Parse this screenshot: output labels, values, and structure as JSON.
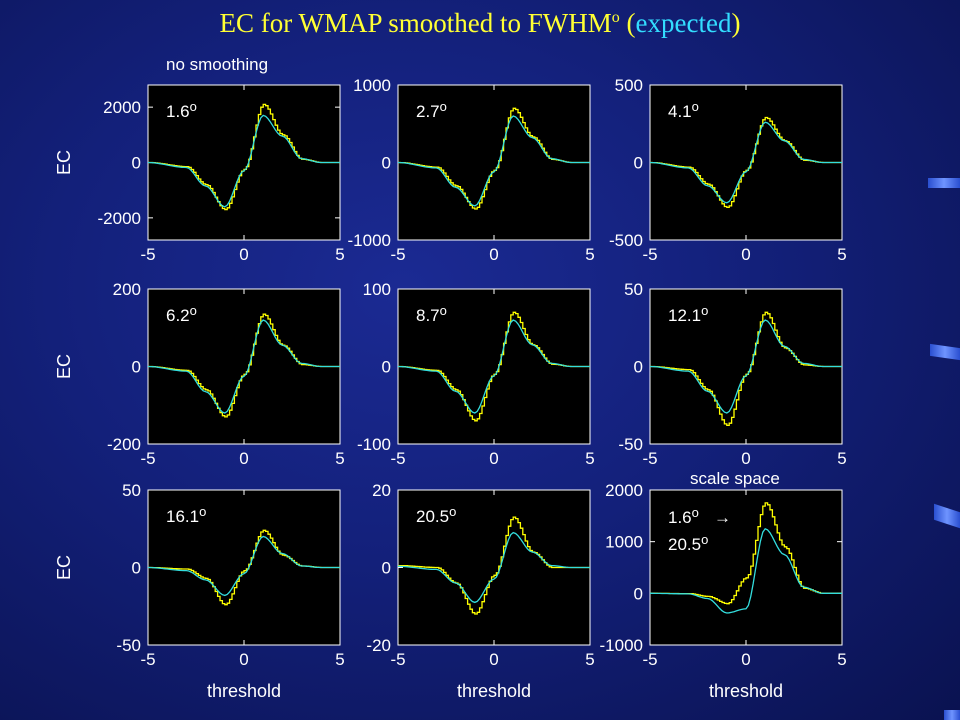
{
  "slide": {
    "title_prefix": "EC for WMAP smoothed to FWHM",
    "title_sup": "o",
    "title_open": " (",
    "title_expected": "expected",
    "title_close": ")",
    "note_no_smoothing": "no smoothing",
    "note_scale_space": "scale space"
  },
  "colors": {
    "observed_curve": "#ffff00",
    "expected_curve": "#33dddd",
    "title": "#ffff33",
    "expected_title": "#33ddff",
    "background": "#13207a",
    "plot_background": "#000000"
  },
  "chart_data": [
    {
      "type": "line",
      "panel": "1.6",
      "label": "1.6",
      "label_sup": "o",
      "xlabel": "",
      "ylabel": "EC",
      "xlim": [
        -5,
        5
      ],
      "ylim": [
        -2800,
        2800
      ],
      "xticks": [
        "-5",
        "0",
        "5"
      ],
      "yticks": [
        {
          "v": 2000,
          "t": "2000"
        },
        {
          "v": 0,
          "t": "0"
        },
        {
          "v": -2000,
          "t": "-2000"
        }
      ],
      "series": [
        {
          "color": "yellow",
          "x": [
            -5,
            -3,
            -2,
            -1,
            0,
            1,
            2,
            3,
            4,
            5
          ],
          "y": [
            0,
            -150,
            -800,
            -1700,
            -250,
            2100,
            1000,
            120,
            0,
            0
          ]
        },
        {
          "color": "cyan",
          "x": [
            -5,
            -3,
            -2,
            -1,
            0,
            1,
            2,
            3,
            4,
            5
          ],
          "y": [
            0,
            -180,
            -850,
            -1600,
            -300,
            1700,
            950,
            140,
            0,
            0
          ]
        }
      ]
    },
    {
      "type": "line",
      "panel": "2.7",
      "label": "2.7",
      "label_sup": "o",
      "xlabel": "",
      "ylabel": "",
      "xlim": [
        -5,
        5
      ],
      "ylim": [
        -1000,
        1000
      ],
      "xticks": [
        "-5",
        "0",
        "5"
      ],
      "yticks": [
        {
          "v": 1000,
          "t": "1000"
        },
        {
          "v": 0,
          "t": "0"
        },
        {
          "v": -1000,
          "t": "-1000"
        }
      ],
      "series": [
        {
          "color": "yellow",
          "x": [
            -5,
            -3,
            -2,
            -1,
            0,
            1,
            2,
            3,
            4,
            5
          ],
          "y": [
            0,
            -60,
            -300,
            -600,
            -100,
            700,
            330,
            40,
            0,
            0
          ]
        },
        {
          "color": "cyan",
          "x": [
            -5,
            -3,
            -2,
            -1,
            0,
            1,
            2,
            3,
            4,
            5
          ],
          "y": [
            0,
            -70,
            -320,
            -560,
            -120,
            600,
            320,
            50,
            0,
            0
          ]
        }
      ]
    },
    {
      "type": "line",
      "panel": "4.1",
      "label": "4.1",
      "label_sup": "o",
      "xlabel": "",
      "ylabel": "",
      "xlim": [
        -5,
        5
      ],
      "ylim": [
        -500,
        500
      ],
      "xticks": [
        "-5",
        "0",
        "5"
      ],
      "yticks": [
        {
          "v": 500,
          "t": "500"
        },
        {
          "v": 0,
          "t": "0"
        },
        {
          "v": -500,
          "t": "-500"
        }
      ],
      "series": [
        {
          "color": "yellow",
          "x": [
            -5,
            -3,
            -2,
            -1,
            0,
            1,
            2,
            3,
            4,
            5
          ],
          "y": [
            0,
            -30,
            -140,
            -290,
            -50,
            290,
            140,
            15,
            0,
            0
          ]
        },
        {
          "color": "cyan",
          "x": [
            -5,
            -3,
            -2,
            -1,
            0,
            1,
            2,
            3,
            4,
            5
          ],
          "y": [
            0,
            -35,
            -150,
            -260,
            -60,
            260,
            140,
            20,
            0,
            0
          ]
        }
      ]
    },
    {
      "type": "line",
      "panel": "6.2",
      "label": "6.2",
      "label_sup": "o",
      "xlabel": "",
      "ylabel": "EC",
      "xlim": [
        -5,
        5
      ],
      "ylim": [
        -200,
        200
      ],
      "xticks": [
        "-5",
        "0",
        "5"
      ],
      "yticks": [
        {
          "v": 200,
          "t": "200"
        },
        {
          "v": 0,
          "t": "0"
        },
        {
          "v": -200,
          "t": "-200"
        }
      ],
      "series": [
        {
          "color": "yellow",
          "x": [
            -5,
            -3,
            -2,
            -1,
            0,
            1,
            2,
            3,
            4,
            5
          ],
          "y": [
            0,
            -10,
            -60,
            -130,
            -20,
            135,
            55,
            5,
            0,
            0
          ]
        },
        {
          "color": "cyan",
          "x": [
            -5,
            -3,
            -2,
            -1,
            0,
            1,
            2,
            3,
            4,
            5
          ],
          "y": [
            0,
            -12,
            -65,
            -120,
            -25,
            120,
            55,
            8,
            0,
            0
          ]
        }
      ]
    },
    {
      "type": "line",
      "panel": "8.7",
      "label": "8.7",
      "label_sup": "o",
      "xlabel": "",
      "ylabel": "",
      "xlim": [
        -5,
        5
      ],
      "ylim": [
        -100,
        100
      ],
      "xticks": [
        "-5",
        "0",
        "5"
      ],
      "yticks": [
        {
          "v": 100,
          "t": "100"
        },
        {
          "v": 0,
          "t": "0"
        },
        {
          "v": -100,
          "t": "-100"
        }
      ],
      "series": [
        {
          "color": "yellow",
          "x": [
            -5,
            -3,
            -2,
            -1,
            0,
            1,
            2,
            3,
            4,
            5
          ],
          "y": [
            0,
            -5,
            -30,
            -70,
            -10,
            70,
            28,
            3,
            0,
            0
          ]
        },
        {
          "color": "cyan",
          "x": [
            -5,
            -3,
            -2,
            -1,
            0,
            1,
            2,
            3,
            4,
            5
          ],
          "y": [
            0,
            -6,
            -32,
            -60,
            -12,
            60,
            28,
            4,
            0,
            0
          ]
        }
      ]
    },
    {
      "type": "line",
      "panel": "12.1",
      "label": "12.1",
      "label_sup": "o",
      "xlabel": "",
      "ylabel": "",
      "xlim": [
        -5,
        5
      ],
      "ylim": [
        -50,
        50
      ],
      "xticks": [
        "-5",
        "0",
        "5"
      ],
      "yticks": [
        {
          "v": 50,
          "t": "50"
        },
        {
          "v": 0,
          "t": "0"
        },
        {
          "v": -50,
          "t": "-50"
        }
      ],
      "series": [
        {
          "color": "yellow",
          "x": [
            -5,
            -3,
            -2,
            -1,
            0,
            1,
            2,
            3,
            4,
            5
          ],
          "y": [
            0,
            -2,
            -15,
            -38,
            -5,
            35,
            12,
            1,
            0,
            0
          ]
        },
        {
          "color": "cyan",
          "x": [
            -5,
            -3,
            -2,
            -1,
            0,
            1,
            2,
            3,
            4,
            5
          ],
          "y": [
            0,
            -3,
            -16,
            -30,
            -6,
            30,
            13,
            2,
            0,
            0
          ]
        }
      ]
    },
    {
      "type": "line",
      "panel": "16.1",
      "label": "16.1",
      "label_sup": "o",
      "xlabel": "threshold",
      "ylabel": "EC",
      "xlim": [
        -5,
        5
      ],
      "ylim": [
        -50,
        50
      ],
      "xticks": [
        "-5",
        "0",
        "5"
      ],
      "yticks": [
        {
          "v": 50,
          "t": "50"
        },
        {
          "v": 0,
          "t": "0"
        },
        {
          "v": -50,
          "t": "-50"
        }
      ],
      "series": [
        {
          "color": "yellow",
          "x": [
            -5,
            -3,
            -2,
            -1,
            0,
            1,
            2,
            3,
            4,
            5
          ],
          "y": [
            0,
            -1,
            -7,
            -24,
            -2,
            24,
            8,
            1,
            0,
            0
          ]
        },
        {
          "color": "cyan",
          "x": [
            -5,
            -3,
            -2,
            -1,
            0,
            1,
            2,
            3,
            4,
            5
          ],
          "y": [
            0,
            -2,
            -8,
            -18,
            -4,
            20,
            9,
            1,
            0,
            0
          ]
        }
      ]
    },
    {
      "type": "line",
      "panel": "20.5",
      "label": "20.5",
      "label_sup": "o",
      "xlabel": "threshold",
      "ylabel": "",
      "xlim": [
        -5,
        5
      ],
      "ylim": [
        -20,
        20
      ],
      "xticks": [
        "-5",
        "0",
        "5"
      ],
      "yticks": [
        {
          "v": 20,
          "t": "20"
        },
        {
          "v": 0,
          "t": "0"
        },
        {
          "v": -20,
          "t": "-20"
        }
      ],
      "series": [
        {
          "color": "yellow",
          "x": [
            -5,
            -3,
            -2,
            -1,
            0,
            1,
            2,
            3,
            4,
            5
          ],
          "y": [
            0.5,
            0,
            -4,
            -12,
            -2,
            13,
            4,
            0,
            0,
            0
          ]
        },
        {
          "color": "cyan",
          "x": [
            -5,
            -3,
            -2,
            -1,
            0,
            1,
            2,
            3,
            4,
            5
          ],
          "y": [
            0.3,
            -0.5,
            -4,
            -9,
            -3,
            9,
            4,
            0.5,
            0,
            0
          ]
        }
      ]
    },
    {
      "type": "line",
      "panel": "scale-space",
      "label": "1.6",
      "label_sup": "o",
      "label_arrow": "→",
      "label2": "20.5",
      "label2_sup": "o",
      "xlabel": "threshold",
      "ylabel": "",
      "xlim": [
        -5,
        5
      ],
      "ylim": [
        -1000,
        2000
      ],
      "xticks": [
        "-5",
        "0",
        "5"
      ],
      "yticks": [
        {
          "v": 2000,
          "t": "2000"
        },
        {
          "v": 1000,
          "t": "1000"
        },
        {
          "v": 0,
          "t": "0"
        },
        {
          "v": -1000,
          "t": "-1000"
        }
      ],
      "series": [
        {
          "color": "yellow",
          "x": [
            -5,
            -3,
            -2,
            -1,
            0,
            1,
            2,
            3,
            4,
            5
          ],
          "y": [
            0,
            -5,
            -60,
            -200,
            300,
            1750,
            900,
            100,
            0,
            0
          ]
        },
        {
          "color": "cyan",
          "x": [
            -5,
            -3,
            -2,
            -1,
            0,
            1,
            2,
            3,
            4,
            5
          ],
          "y": [
            0,
            -10,
            -100,
            -380,
            -300,
            1250,
            750,
            120,
            0,
            0
          ]
        }
      ]
    }
  ]
}
